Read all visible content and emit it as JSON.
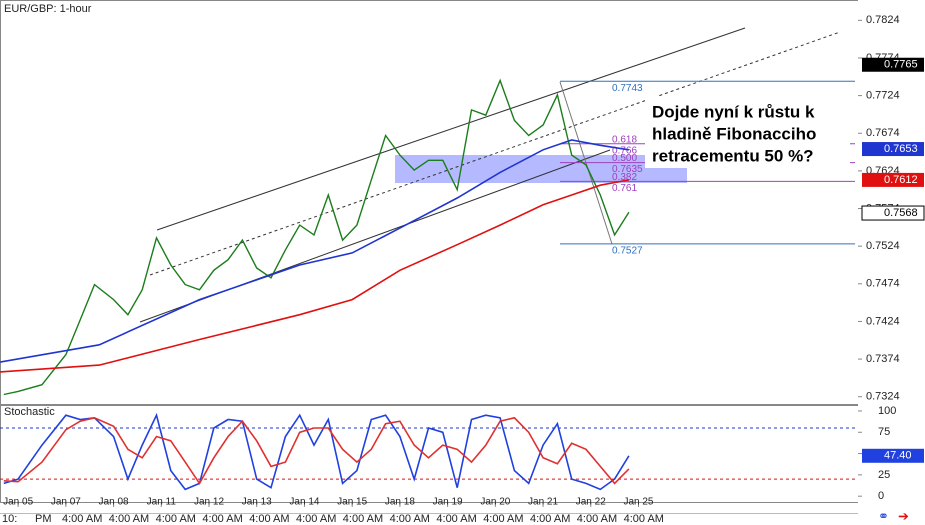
{
  "chart_data": [
    {
      "type": "line",
      "title": "EUR/GBP: 1-hour",
      "xlim": [
        -0.38,
        17.6
      ],
      "ylim": [
        0.7313,
        0.7851
      ],
      "yticks": [
        0.7824,
        0.7774,
        0.7724,
        0.7674,
        0.7624,
        0.7574,
        0.7524,
        0.7474,
        0.7424,
        0.7374,
        0.7324
      ],
      "xticks": [
        {
          "value": 0,
          "label": "Jan 05"
        },
        {
          "value": 1,
          "label": "Jan 07"
        },
        {
          "value": 2,
          "label": "Jan 08"
        },
        {
          "value": 3,
          "label": "Jan 11"
        },
        {
          "value": 4,
          "label": "Jan 12"
        },
        {
          "value": 5,
          "label": "Jan 13"
        },
        {
          "value": 6,
          "label": "Jan 14"
        },
        {
          "value": 7,
          "label": "Jan 15"
        },
        {
          "value": 8,
          "label": "Jan 18"
        },
        {
          "value": 9,
          "label": "Jan 19"
        },
        {
          "value": 10,
          "label": "Jan 20"
        },
        {
          "value": 11,
          "label": "Jan 21"
        },
        {
          "value": 12,
          "label": "Jan 22"
        },
        {
          "value": 13,
          "label": "Jan 25"
        }
      ],
      "series": [
        {
          "color": "#1b7d1b",
          "x": [
            -0.3,
            0,
            0.5,
            1,
            1.3,
            1.6,
            2,
            2.3,
            2.6,
            2.9,
            3.2,
            3.5,
            3.8,
            4.1,
            4.4,
            4.7,
            5,
            5.3,
            5.6,
            5.9,
            6.2,
            6.5,
            6.8,
            7.1,
            7.4,
            7.7,
            8,
            8.3,
            8.6,
            8.9,
            9.2,
            9.5,
            9.8,
            10.1,
            10.4,
            10.7,
            11,
            11.3,
            11.6,
            11.9,
            12.2,
            12.5,
            12.8
          ],
          "values": [
            0.7327,
            0.7331,
            0.734,
            0.738,
            0.7426,
            0.7473,
            0.7453,
            0.7433,
            0.7466,
            0.7535,
            0.7499,
            0.7473,
            0.7466,
            0.7492,
            0.7506,
            0.7532,
            0.7495,
            0.7482,
            0.7519,
            0.7552,
            0.7539,
            0.7592,
            0.7532,
            0.7552,
            0.7612,
            0.7671,
            0.7645,
            0.7625,
            0.7638,
            0.7638,
            0.7599,
            0.7705,
            0.7698,
            0.7744,
            0.7691,
            0.7671,
            0.7685,
            0.7725,
            0.7645,
            0.7632,
            0.7592,
            0.7539,
            0.7569
          ]
        },
        {
          "color": "#1f35d0",
          "x": [
            -0.38,
            1.7,
            3.8,
            5.9,
            7.0,
            8.0,
            9.2,
            10.1,
            11.0,
            11.6,
            12.2,
            12.8
          ],
          "values": [
            0.737,
            0.7393,
            0.7453,
            0.7499,
            0.7515,
            0.7548,
            0.7588,
            0.7622,
            0.7652,
            0.7665,
            0.7658,
            0.7652
          ]
        },
        {
          "color": "#e01010",
          "x": [
            -0.38,
            1.7,
            3.8,
            5.9,
            7.0,
            8.0,
            9.2,
            10.1,
            11.0,
            11.6,
            12.2,
            12.8
          ],
          "values": [
            0.7357,
            0.7366,
            0.74,
            0.7433,
            0.7453,
            0.7492,
            0.7526,
            0.7552,
            0.7579,
            0.7592,
            0.7605,
            0.7612
          ]
        }
      ],
      "fib_levels": [
        {
          "price": 0.7743
        },
        {
          "ratio": "0.618",
          "price": 0.766
        },
        {
          "ratio": "0.500",
          "price": 0.7635
        },
        {
          "ratio": "0.382",
          "price": 0.761
        },
        {
          "price": 0.7527
        }
      ],
      "badges": [
        {
          "value": 0.7765,
          "color": "#000000"
        },
        {
          "value": 0.7653,
          "color": "#1f35d0"
        },
        {
          "value": 0.7612,
          "color": "#e01010"
        },
        {
          "value": 0.7568,
          "color": "#ffffff"
        }
      ],
      "annotation": [
        "Dojde nyní k růstu k",
        "hladině Fibonacciho",
        "retracementu 50 %?"
      ]
    },
    {
      "type": "line",
      "title": "Stochastic",
      "xlim": [
        -0.38,
        17.6
      ],
      "ylim": [
        -8,
        107
      ],
      "yticks": [
        100,
        75,
        50,
        25,
        0
      ],
      "levels": [
        {
          "value": 80,
          "color": "#1f35d0"
        },
        {
          "value": 20,
          "color": "#e01010"
        }
      ],
      "series": [
        {
          "color": "#2040e0",
          "x": [
            -0.3,
            0,
            0.5,
            1,
            1.3,
            1.6,
            2,
            2.3,
            2.6,
            2.9,
            3.2,
            3.5,
            3.8,
            4.1,
            4.4,
            4.7,
            5,
            5.3,
            5.6,
            5.9,
            6.2,
            6.5,
            6.8,
            7.1,
            7.4,
            7.7,
            8,
            8.3,
            8.6,
            8.9,
            9.2,
            9.5,
            9.8,
            10.1,
            10.4,
            10.7,
            11,
            11.3,
            11.6,
            11.9,
            12.2,
            12.5,
            12.8
          ],
          "values": [
            15,
            20,
            60,
            95,
            90,
            92,
            70,
            20,
            60,
            95,
            30,
            8,
            15,
            80,
            90,
            88,
            20,
            10,
            70,
            95,
            60,
            90,
            15,
            30,
            90,
            95,
            70,
            20,
            80,
            75,
            10,
            90,
            95,
            92,
            30,
            15,
            60,
            85,
            20,
            15,
            8,
            20,
            47.4
          ],
          "last_label": "47.40"
        },
        {
          "color": "#e03030",
          "x": [
            -0.3,
            0,
            0.5,
            1,
            1.3,
            1.6,
            2,
            2.3,
            2.6,
            2.9,
            3.2,
            3.5,
            3.8,
            4.1,
            4.4,
            4.7,
            5,
            5.3,
            5.6,
            5.9,
            6.2,
            6.5,
            6.8,
            7.1,
            7.4,
            7.7,
            8,
            8.3,
            8.6,
            8.9,
            9.2,
            9.5,
            9.8,
            10.1,
            10.4,
            10.7,
            11,
            11.3,
            11.6,
            11.9,
            12.2,
            12.5,
            12.8
          ],
          "values": [
            18,
            17,
            40,
            78,
            88,
            92,
            82,
            55,
            45,
            70,
            65,
            40,
            15,
            45,
            70,
            88,
            65,
            35,
            40,
            75,
            80,
            80,
            55,
            40,
            55,
            85,
            88,
            60,
            45,
            60,
            55,
            40,
            60,
            88,
            92,
            75,
            45,
            38,
            62,
            55,
            35,
            15,
            32
          ]
        }
      ]
    }
  ],
  "time_labels": [
    "10:",
    "PM",
    "4:00 AM",
    "4:00 AM",
    "4:00 AM",
    "4:00 AM",
    "4:00 AM",
    "4:00 AM",
    "4:00 AM",
    "4:00 AM",
    "4:00 AM",
    "4:00 AM",
    "4:00 AM",
    "4:00 AM",
    "4:00 AM"
  ]
}
